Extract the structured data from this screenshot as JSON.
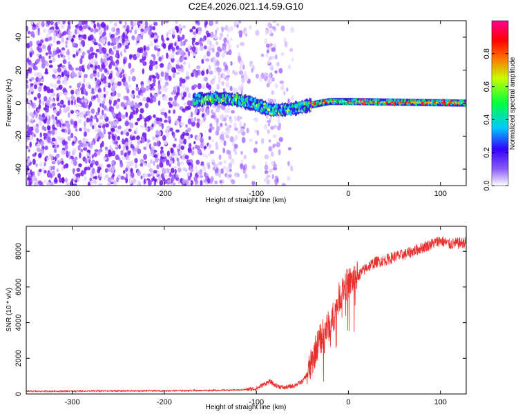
{
  "title": "C2E4.2026.021.14.59.G10",
  "colors": {
    "series": "#e8302c",
    "background": "#ffffff",
    "axis": "#000000"
  },
  "chart_data": [
    {
      "type": "heatmap",
      "xlabel": "Height of straight line (km)",
      "ylabel": "Frequency (Hz)",
      "xlim": [
        -350,
        128
      ],
      "ylim": [
        -50,
        50
      ],
      "xticks": [
        -300,
        -200,
        -100,
        0,
        100
      ],
      "yticks": [
        -40,
        -20,
        0,
        20,
        40
      ],
      "colorbar": {
        "label": "Normalized spectral amplitude",
        "range": [
          0,
          1
        ],
        "ticks": [
          "0.0",
          "0.2",
          "0.4",
          "0.6",
          "0.8"
        ],
        "colormap": "white-purple-blue-cyan-green-yellow-red-magenta"
      },
      "ridge": [
        {
          "x": -165,
          "y": 2
        },
        {
          "x": -140,
          "y": 3
        },
        {
          "x": -120,
          "y": 2
        },
        {
          "x": -100,
          "y": -1
        },
        {
          "x": -85,
          "y": -4
        },
        {
          "x": -70,
          "y": -4
        },
        {
          "x": -55,
          "y": -3
        },
        {
          "x": -40,
          "y": -1
        },
        {
          "x": -20,
          "y": 1
        },
        {
          "x": 0,
          "y": 1
        },
        {
          "x": 128,
          "y": 0
        }
      ],
      "noise_region_x": [
        -350,
        -60
      ]
    },
    {
      "type": "line",
      "xlabel": "Height of straight line (km)",
      "ylabel": "SNR (10 * v/v)",
      "xlim": [
        -350,
        128
      ],
      "ylim": [
        0,
        9400
      ],
      "xticks": [
        -300,
        -200,
        -100,
        0,
        100
      ],
      "yticks": [
        0,
        2000,
        4000,
        6000,
        8000
      ],
      "series": [
        {
          "name": "SNR",
          "x": [
            -350,
            -300,
            -250,
            -200,
            -150,
            -120,
            -100,
            -90,
            -85,
            -80,
            -70,
            -60,
            -50,
            -45,
            -40,
            -35,
            -30,
            -25,
            -20,
            -15,
            -10,
            -5,
            0,
            5,
            10,
            20,
            30,
            40,
            50,
            60,
            70,
            80,
            90,
            100,
            110,
            128
          ],
          "values": [
            150,
            160,
            170,
            180,
            200,
            220,
            300,
            600,
            700,
            500,
            350,
            450,
            700,
            1100,
            1700,
            2600,
            3100,
            3600,
            3900,
            4500,
            5400,
            6000,
            6200,
            6400,
            6600,
            7100,
            7400,
            7500,
            7700,
            7800,
            8000,
            8200,
            8400,
            8600,
            8400,
            8500
          ]
        }
      ]
    }
  ]
}
